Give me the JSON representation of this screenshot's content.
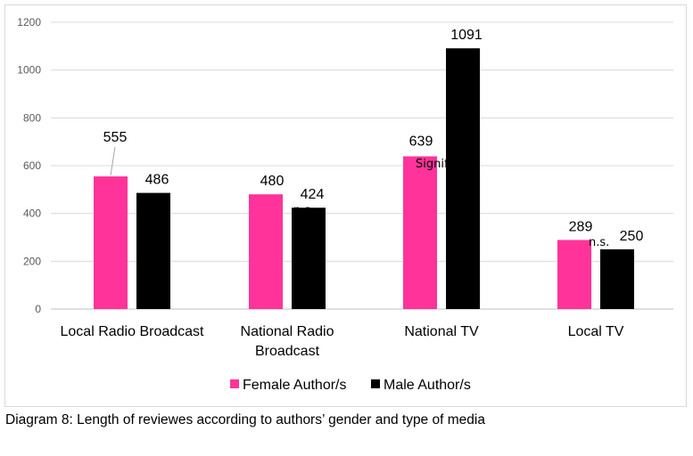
{
  "chart_data": {
    "type": "bar",
    "title": "",
    "categories": [
      "Local Radio Broadcast",
      "National Radio Broadcast",
      "National TV",
      "Local TV"
    ],
    "category_lines": [
      [
        "Local Radio Broadcast"
      ],
      [
        "National Radio",
        "Broadcast"
      ],
      [
        "National TV"
      ],
      [
        "Local TV"
      ]
    ],
    "series": [
      {
        "name": "Female Author/s",
        "color": "#FF3399",
        "values": [
          555,
          480,
          639,
          289
        ]
      },
      {
        "name": "Male Author/s",
        "color": "#000000",
        "values": [
          486,
          424,
          1091,
          250
        ]
      }
    ],
    "annotations": [
      "n.s.",
      "n.s.",
      "Signifikant",
      "n.s."
    ],
    "ylim": [
      0,
      1200
    ],
    "yticks": [
      0,
      200,
      400,
      600,
      800,
      1000,
      1200
    ],
    "grid": true,
    "legend": "bottom",
    "xlabel": "",
    "ylabel": ""
  },
  "caption": "Diagram 8: Length of reviewes according to authors’ gender and type of media"
}
